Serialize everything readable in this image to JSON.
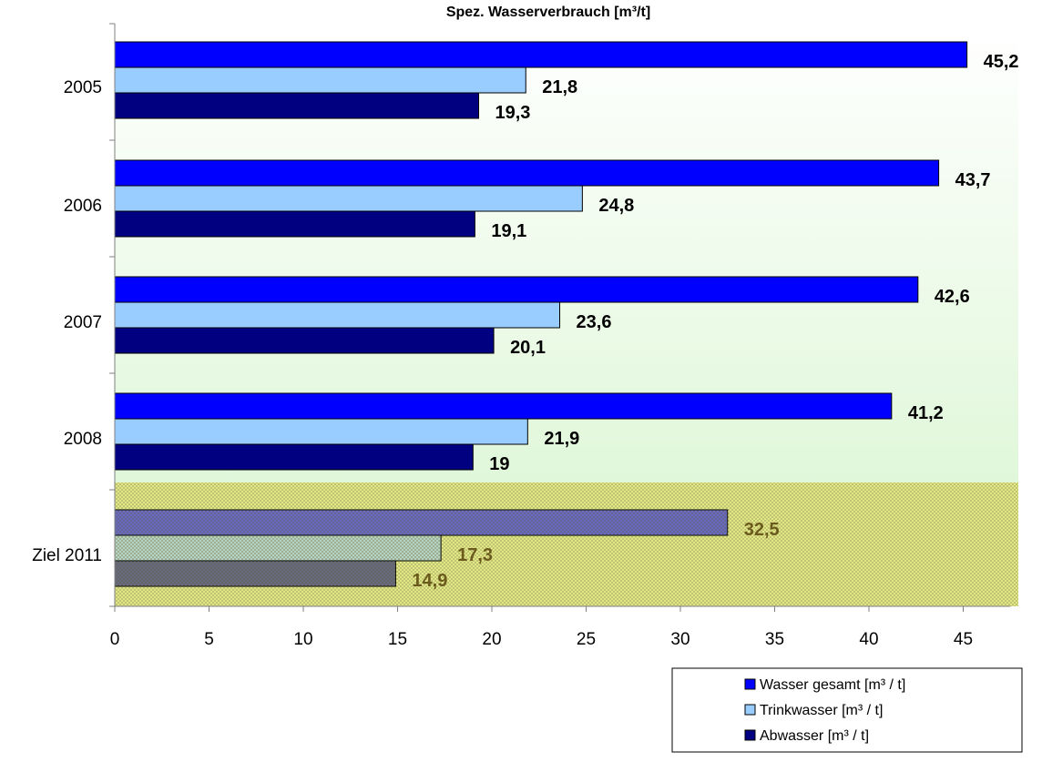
{
  "chart_data": {
    "type": "bar",
    "orientation": "horizontal",
    "title": "Spez. Wasserverbrauch [m³/t]",
    "xlabel": "",
    "ylabel": "",
    "xlim": [
      0,
      47.5
    ],
    "x_ticks": [
      0,
      5,
      10,
      15,
      20,
      25,
      30,
      35,
      40,
      45
    ],
    "grid": false,
    "legend_position": "bottom-right",
    "categories": [
      "2005",
      "2006",
      "2007",
      "2008",
      "Ziel 2011"
    ],
    "series": [
      {
        "name": "Wasser gesamt [m³ / t]",
        "color": "#0000ff",
        "values": [
          45.2,
          43.7,
          42.6,
          41.2,
          32.5
        ],
        "labels": [
          "45,2",
          "43,7",
          "42,6",
          "41,2",
          "32,5"
        ]
      },
      {
        "name": "Trinkwasser [m³ / t]",
        "color": "#99ccff",
        "values": [
          21.8,
          24.8,
          23.6,
          21.9,
          17.3
        ],
        "labels": [
          "21,8",
          "24,8",
          "23,6",
          "21,9",
          "17,3"
        ]
      },
      {
        "name": "Abwasser [m³ / t]",
        "color": "#000080",
        "values": [
          19.3,
          19.1,
          20.1,
          19,
          14.9
        ],
        "labels": [
          "19,3",
          "19,1",
          "20,1",
          "19",
          "14,9"
        ]
      }
    ],
    "highlight_category": "Ziel 2011",
    "colors": {
      "plot_gradient_top": "#ffffff",
      "plot_gradient_bottom": "#d8f5d0",
      "highlight_band": "#e6ec8a",
      "target_label_color": "#6b5a1e",
      "axis": "#808080"
    }
  }
}
